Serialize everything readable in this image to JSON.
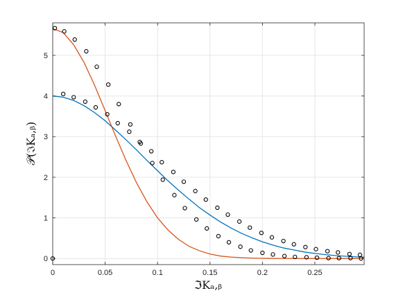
{
  "chart_data": {
    "type": "line",
    "title": "",
    "xlabel": "ℑKₐ,ᵦ",
    "ylabel": "𝒫(ℑKₐ,ᵦ)",
    "xlim": [
      0,
      0.297
    ],
    "ylim": [
      -0.15,
      5.8
    ],
    "xticks": [
      0,
      0.05,
      0.1,
      0.15,
      0.2,
      0.25
    ],
    "xtick_labels": [
      "0",
      "0.05",
      "0.1",
      "0.15",
      "0.2",
      "0.25"
    ],
    "yticks": [
      0,
      1,
      2,
      3,
      4,
      5
    ],
    "ytick_labels": [
      "0",
      "1",
      "2",
      "3",
      "4",
      "5"
    ],
    "grid": true,
    "series": [
      {
        "kind": "line",
        "color": "#d95319",
        "x": [
          0,
          0.01,
          0.02,
          0.03,
          0.04,
          0.05,
          0.06,
          0.07,
          0.08,
          0.09,
          0.1,
          0.11,
          0.12,
          0.13,
          0.14,
          0.15,
          0.16,
          0.17,
          0.18,
          0.19,
          0.2,
          0.21,
          0.22,
          0.23,
          0.24,
          0.25,
          0.26,
          0.27,
          0.28,
          0.29,
          0.297
        ],
        "values": [
          5.66,
          5.56,
          5.26,
          4.82,
          4.26,
          3.64,
          3.01,
          2.41,
          1.86,
          1.39,
          1.0,
          0.7,
          0.47,
          0.3,
          0.19,
          0.11,
          0.06,
          0.035,
          0.02,
          0.01,
          0.005,
          0.002,
          0.001,
          0.0,
          0.0,
          0.0,
          0.0,
          0.0,
          0.0,
          0.0,
          0.0
        ]
      },
      {
        "kind": "line",
        "color": "#0072bd",
        "x": [
          0,
          0.01,
          0.02,
          0.03,
          0.04,
          0.05,
          0.06,
          0.07,
          0.08,
          0.09,
          0.1,
          0.11,
          0.12,
          0.13,
          0.14,
          0.15,
          0.16,
          0.17,
          0.18,
          0.19,
          0.2,
          0.21,
          0.22,
          0.23,
          0.24,
          0.25,
          0.26,
          0.27,
          0.28,
          0.29,
          0.297
        ],
        "values": [
          4.0,
          3.97,
          3.89,
          3.76,
          3.59,
          3.39,
          3.16,
          2.92,
          2.67,
          2.41,
          2.16,
          1.91,
          1.68,
          1.46,
          1.25,
          1.07,
          0.9,
          0.75,
          0.62,
          0.51,
          0.41,
          0.33,
          0.26,
          0.21,
          0.16,
          0.125,
          0.095,
          0.072,
          0.054,
          0.04,
          0.032
        ]
      },
      {
        "kind": "markers",
        "color": "#000000",
        "x": [
          0.002,
          0.011,
          0.021,
          0.032,
          0.042,
          0.053,
          0.063,
          0.074,
          0.084,
          0.095,
          0.105,
          0.116,
          0.126,
          0.137,
          0.147,
          0.158,
          0.168,
          0.179,
          0.189,
          0.2,
          0.21,
          0.221,
          0.231,
          0.242,
          0.252,
          0.263,
          0.273,
          0.284,
          0.294
        ],
        "values": [
          5.67,
          5.59,
          5.39,
          5.1,
          4.72,
          4.28,
          3.8,
          3.3,
          2.83,
          2.35,
          1.94,
          1.56,
          1.24,
          0.96,
          0.74,
          0.55,
          0.4,
          0.29,
          0.2,
          0.14,
          0.1,
          0.06,
          0.04,
          0.03,
          0.02,
          0.01,
          0.01,
          0.01,
          0.0
        ]
      },
      {
        "kind": "markers",
        "color": "#000000",
        "x": [
          0.01,
          0.02,
          0.031,
          0.041,
          0.052,
          0.062,
          0.073,
          0.083,
          0.094,
          0.104,
          0.115,
          0.125,
          0.136,
          0.146,
          0.157,
          0.167,
          0.178,
          0.188,
          0.199,
          0.209,
          0.22,
          0.23,
          0.241,
          0.251,
          0.262,
          0.272,
          0.283,
          0.293
        ],
        "values": [
          4.05,
          3.97,
          3.86,
          3.72,
          3.55,
          3.33,
          3.12,
          2.87,
          2.64,
          2.37,
          2.13,
          1.89,
          1.66,
          1.45,
          1.25,
          1.08,
          0.91,
          0.76,
          0.63,
          0.52,
          0.43,
          0.35,
          0.28,
          0.23,
          0.18,
          0.15,
          0.11,
          0.09
        ]
      },
      {
        "kind": "markers",
        "color": "#000000",
        "x": [
          0.0
        ],
        "values": [
          0.0
        ]
      }
    ]
  }
}
